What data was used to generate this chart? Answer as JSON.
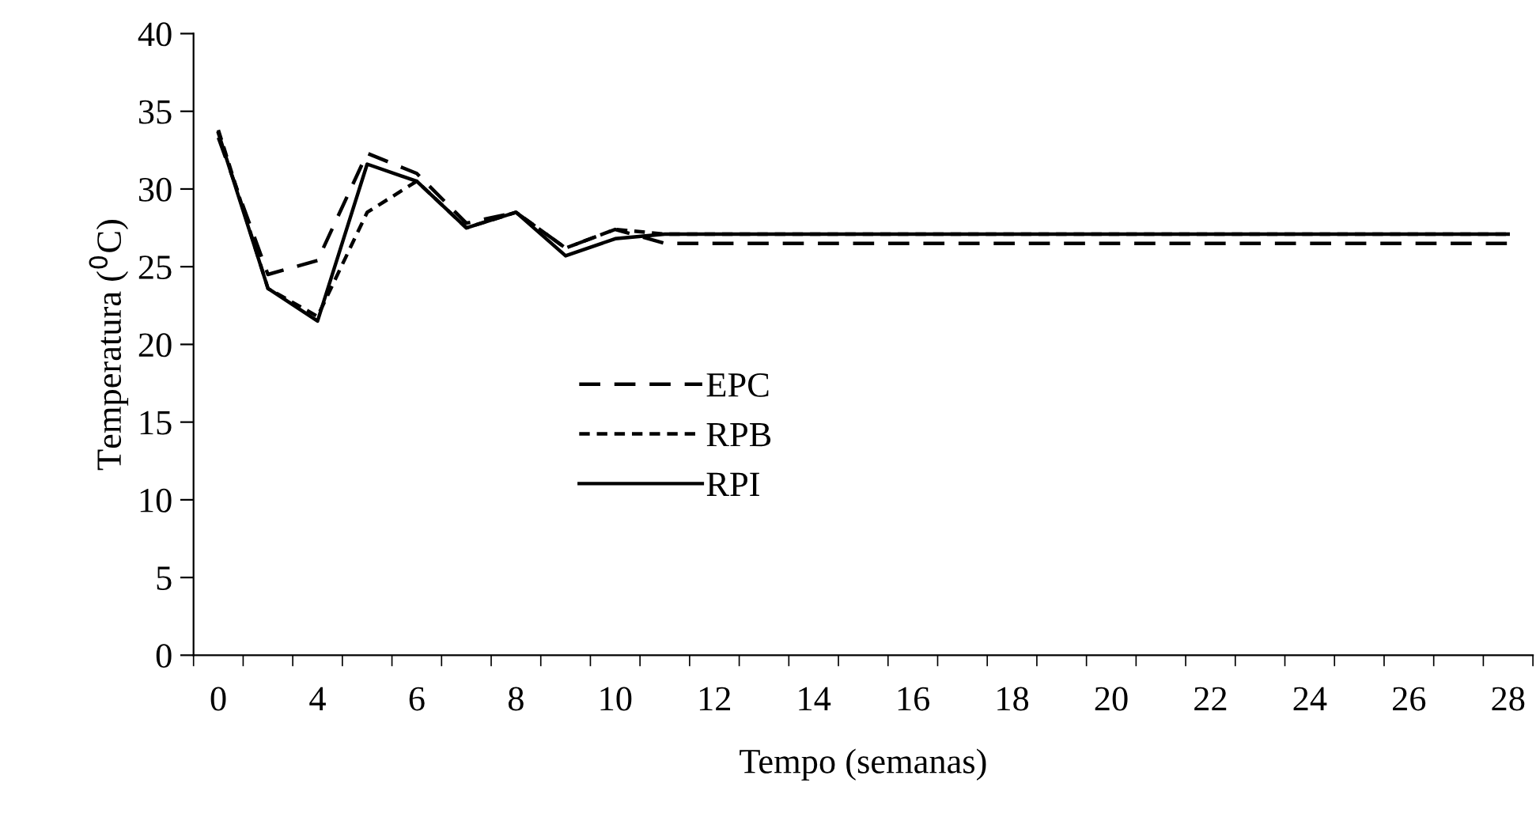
{
  "chart_data": {
    "type": "line",
    "xlabel": "Tempo (semanas)",
    "ylabel": "Temperatura ($^{0}$C)",
    "categories": [
      "0",
      null,
      "4",
      null,
      "6",
      null,
      "8",
      null,
      "10",
      null,
      "12",
      null,
      "14",
      null,
      "16",
      null,
      "18",
      null,
      "20",
      null,
      "22",
      null,
      "24",
      null,
      "26",
      null,
      "28"
    ],
    "series": [
      {
        "name": "EPC",
        "color": "#000000",
        "line_style": "dashed",
        "values": [
          33.3,
          24.5,
          25.4,
          32.3,
          31.0,
          27.8,
          28.5,
          26.2,
          27.4,
          26.5,
          26.5,
          26.5,
          26.5,
          26.5,
          26.5,
          26.5,
          26.5,
          26.5,
          26.5,
          26.5,
          26.5,
          26.5,
          26.5,
          26.5,
          26.5,
          26.5,
          26.5
        ]
      },
      {
        "name": "RPB",
        "color": "#000000",
        "line_style": "dotted",
        "values": [
          33.8,
          23.6,
          21.8,
          28.5,
          30.5,
          27.5,
          28.5,
          26.2,
          27.4,
          27.1,
          27.1,
          27.1,
          27.1,
          27.1,
          27.1,
          27.1,
          27.1,
          27.1,
          27.1,
          27.1,
          27.1,
          27.1,
          27.1,
          27.1,
          27.1,
          27.1,
          27.1
        ]
      },
      {
        "name": "RPI",
        "color": "#000000",
        "line_style": "solid",
        "values": [
          33.6,
          23.6,
          21.5,
          31.6,
          30.5,
          27.5,
          28.5,
          25.7,
          26.8,
          27.1,
          27.1,
          27.1,
          27.1,
          27.1,
          27.1,
          27.1,
          27.1,
          27.1,
          27.1,
          27.1,
          27.1,
          27.1,
          27.1,
          27.1,
          27.1,
          27.1,
          27.1
        ]
      }
    ],
    "ylim": [
      0,
      40
    ],
    "yticks": [
      0,
      5,
      10,
      15,
      20,
      25,
      30,
      35,
      40
    ],
    "grid": false,
    "legend": "center",
    "marker": "none"
  }
}
